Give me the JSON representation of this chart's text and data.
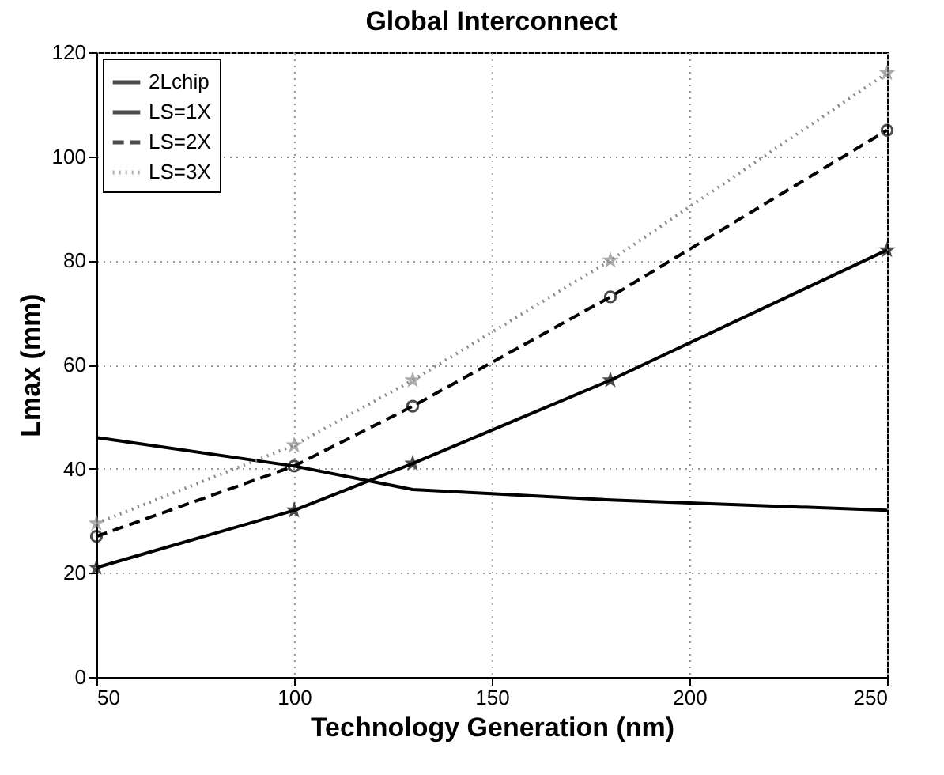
{
  "chart_data": {
    "type": "line",
    "title": "Global Interconnect",
    "xlabel": "Technology Generation (nm)",
    "ylabel": "Lmax (mm)",
    "x": [
      50,
      100,
      130,
      180,
      250
    ],
    "series": [
      {
        "name": "2Lchip",
        "color": "#000000",
        "values": [
          46,
          40.5,
          36,
          34,
          32
        ],
        "marker": "none",
        "line_style": "solid"
      },
      {
        "name": "LS=1X",
        "color": "#000000",
        "values": [
          21,
          32,
          41,
          57,
          82
        ],
        "marker": "star",
        "line_style": "solid"
      },
      {
        "name": "LS=2X",
        "color": "#000000",
        "values": [
          27,
          40.5,
          52,
          73,
          105
        ],
        "marker": "circle",
        "line_style": "dashed"
      },
      {
        "name": "LS=3X",
        "color": "#888888",
        "values": [
          29.5,
          44.5,
          57,
          80,
          116
        ],
        "marker": "star",
        "line_style": "dotted"
      }
    ],
    "xlim": [
      50,
      250
    ],
    "xticks": [
      50,
      100,
      150,
      200,
      250
    ],
    "ylim": [
      0,
      120
    ],
    "yticks": [
      0,
      20,
      40,
      60,
      80,
      100,
      120
    ],
    "grid": true,
    "legend": "top left"
  }
}
